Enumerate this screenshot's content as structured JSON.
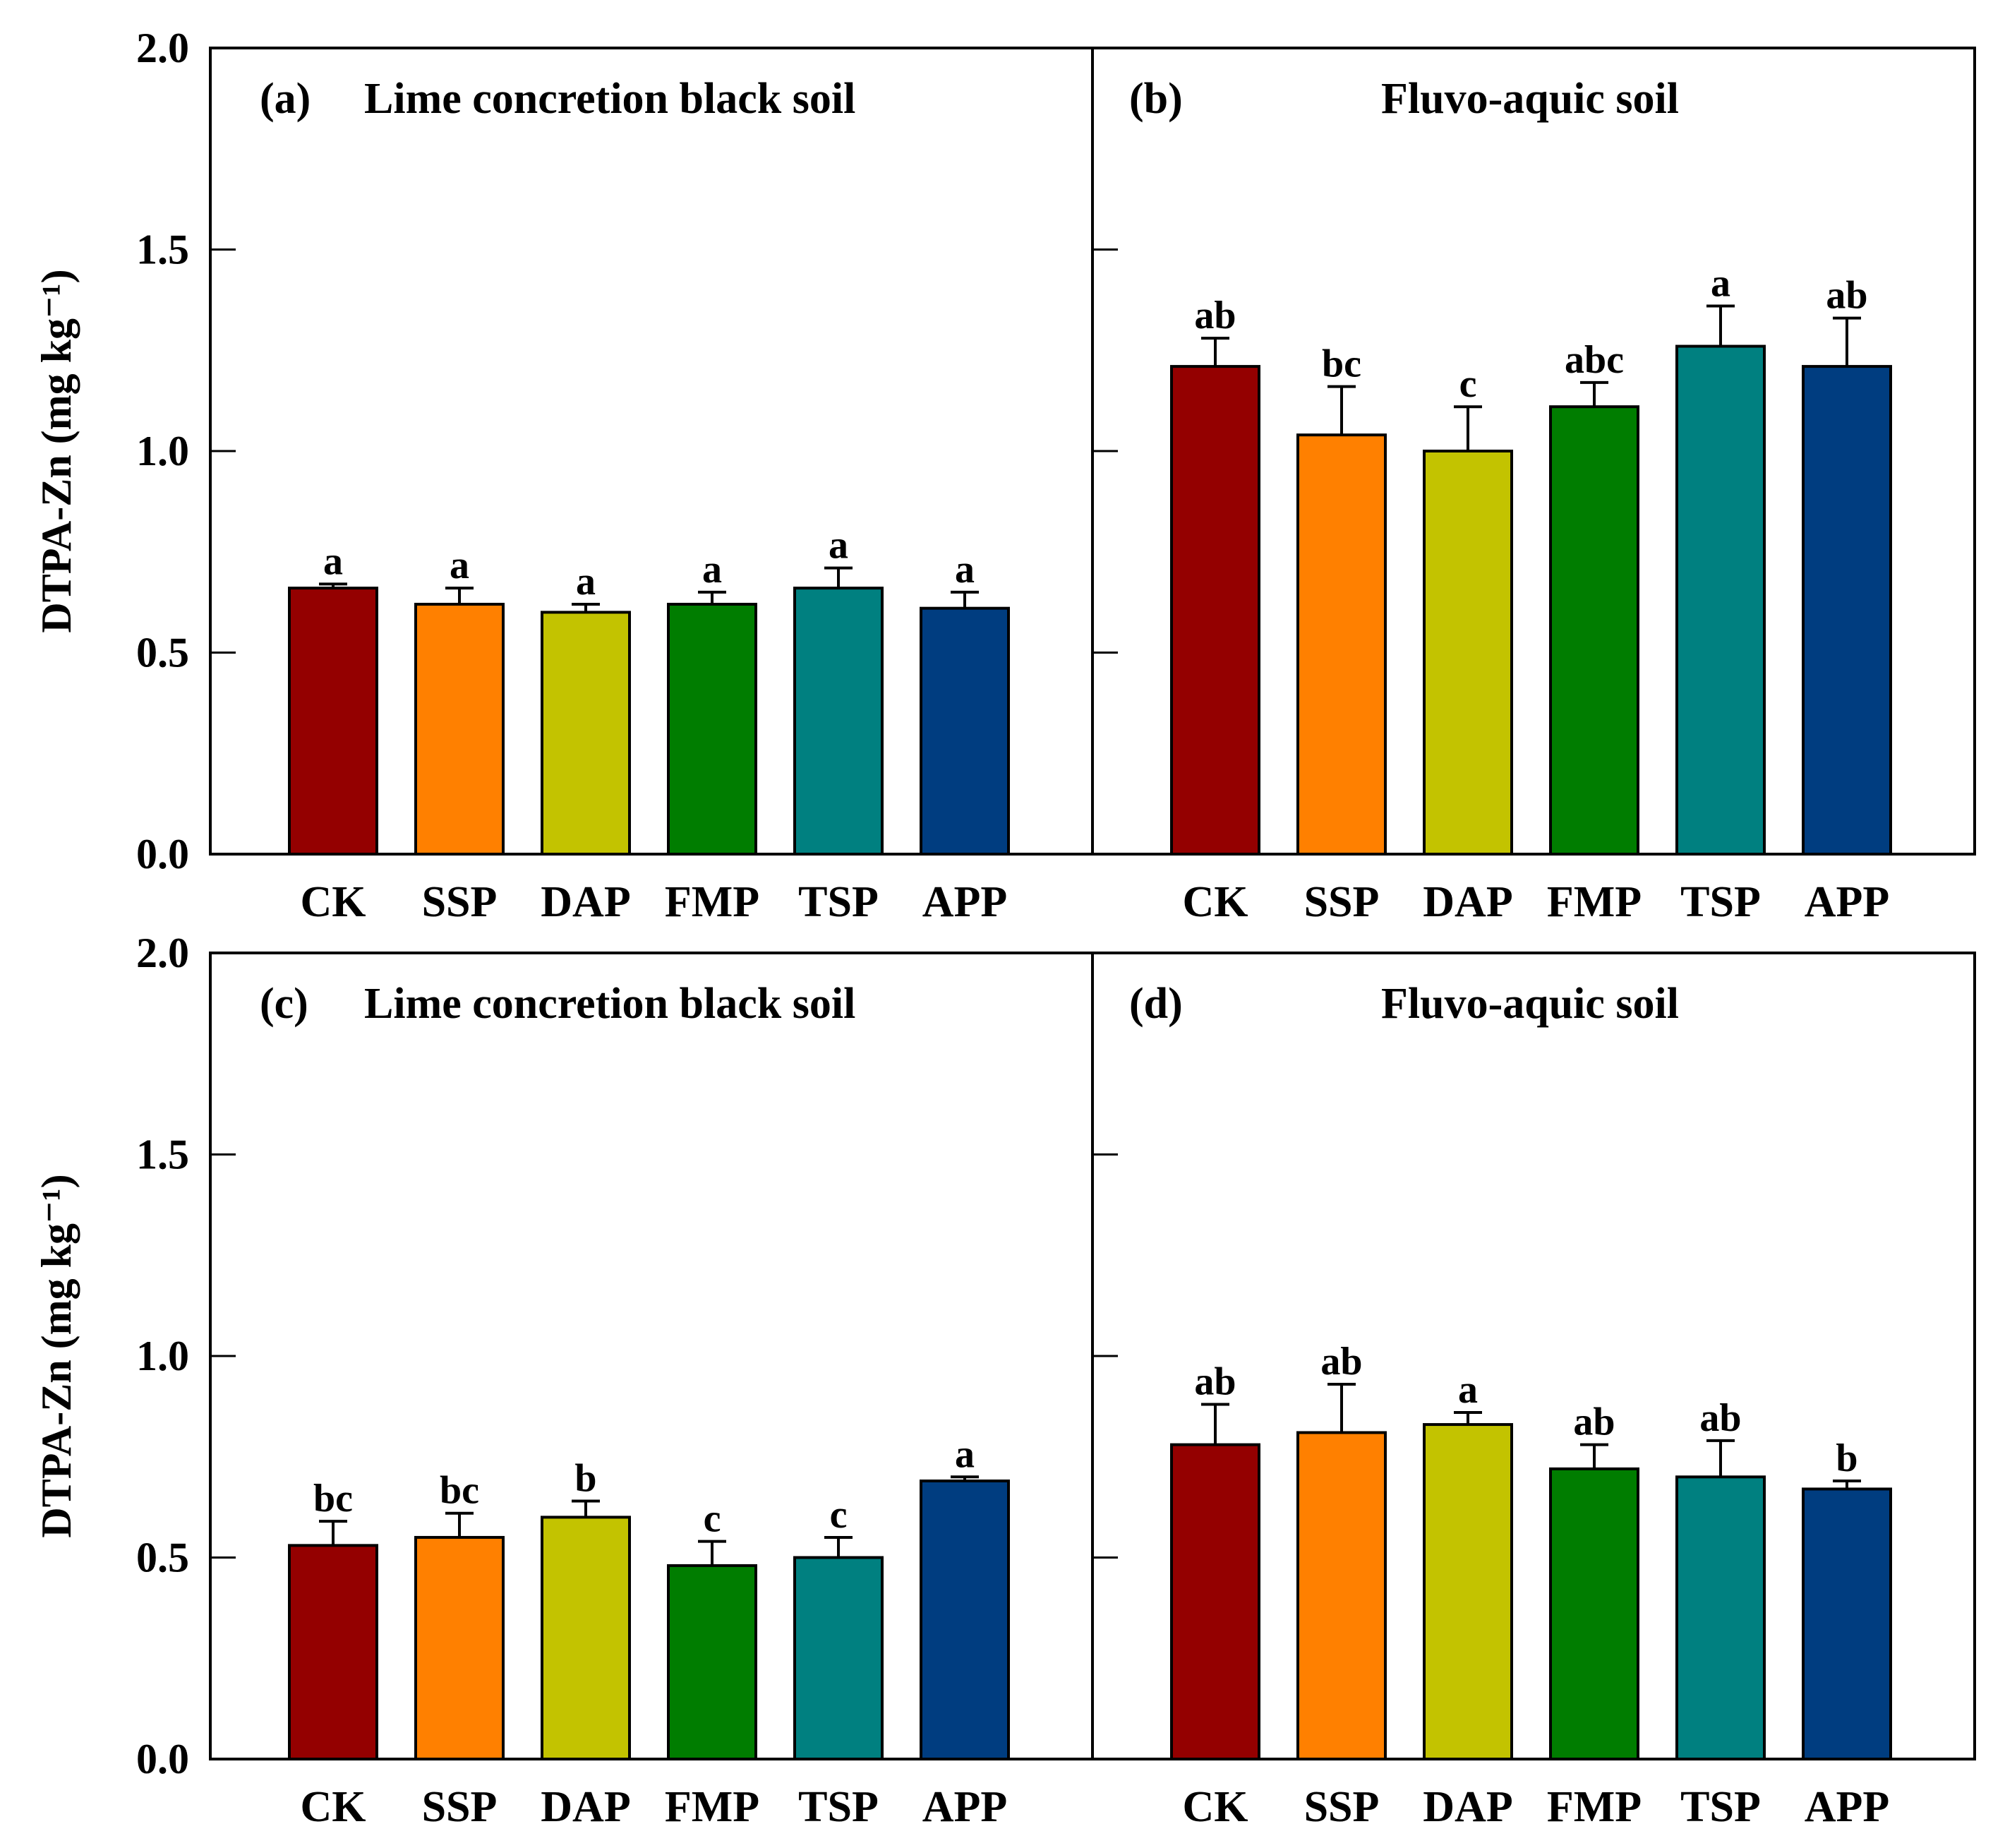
{
  "colors": {
    "CK": "#940000",
    "SSP": "#ff8000",
    "DAP": "#c3c300",
    "FMP": "#007d00",
    "TSP": "#008080",
    "APP": "#003d80"
  },
  "chart_data": [
    {
      "type": "bar",
      "panel": "(a)",
      "title": "Lime concretion black soil",
      "ylabel": "DTPA-Zn (mg kg⁻¹)",
      "ylim": [
        0,
        2.0
      ],
      "yticks": [
        "0.0",
        "0.5",
        "1.0",
        "1.5",
        "2.0"
      ],
      "categories": [
        "CK",
        "SSP",
        "DAP",
        "FMP",
        "TSP",
        "APP"
      ],
      "values": [
        0.66,
        0.62,
        0.6,
        0.62,
        0.66,
        0.61
      ],
      "errors": [
        0.01,
        0.04,
        0.02,
        0.03,
        0.05,
        0.04
      ],
      "letters": [
        "a",
        "a",
        "a",
        "a",
        "a",
        "a"
      ]
    },
    {
      "type": "bar",
      "panel": "(b)",
      "title": "Fluvo-aquic soil",
      "ylim": [
        0,
        2.0
      ],
      "categories": [
        "CK",
        "SSP",
        "DAP",
        "FMP",
        "TSP",
        "APP"
      ],
      "values": [
        1.21,
        1.04,
        1.0,
        1.11,
        1.26,
        1.21
      ],
      "errors": [
        0.07,
        0.12,
        0.11,
        0.06,
        0.1,
        0.12
      ],
      "letters": [
        "ab",
        "bc",
        "c",
        "abc",
        "a",
        "ab"
      ]
    },
    {
      "type": "bar",
      "panel": "(c)",
      "title": "Lime concretion black soil",
      "ylabel": "DTPA-Zn (mg kg⁻¹)",
      "ylim": [
        0,
        2.0
      ],
      "yticks": [
        "0.0",
        "0.5",
        "1.0",
        "1.5",
        "2.0"
      ],
      "categories": [
        "CK",
        "SSP",
        "DAP",
        "FMP",
        "TSP",
        "APP"
      ],
      "values": [
        0.53,
        0.55,
        0.6,
        0.48,
        0.5,
        0.69
      ],
      "errors": [
        0.06,
        0.06,
        0.04,
        0.06,
        0.05,
        0.01
      ],
      "letters": [
        "bc",
        "bc",
        "b",
        "c",
        "c",
        "a"
      ]
    },
    {
      "type": "bar",
      "panel": "(d)",
      "title": "Fluvo-aquic soil",
      "ylim": [
        0,
        2.0
      ],
      "categories": [
        "CK",
        "SSP",
        "DAP",
        "FMP",
        "TSP",
        "APP"
      ],
      "values": [
        0.78,
        0.81,
        0.83,
        0.72,
        0.7,
        0.67
      ],
      "errors": [
        0.1,
        0.12,
        0.03,
        0.06,
        0.09,
        0.02
      ],
      "letters": [
        "ab",
        "ab",
        "a",
        "ab",
        "ab",
        "b"
      ]
    }
  ]
}
